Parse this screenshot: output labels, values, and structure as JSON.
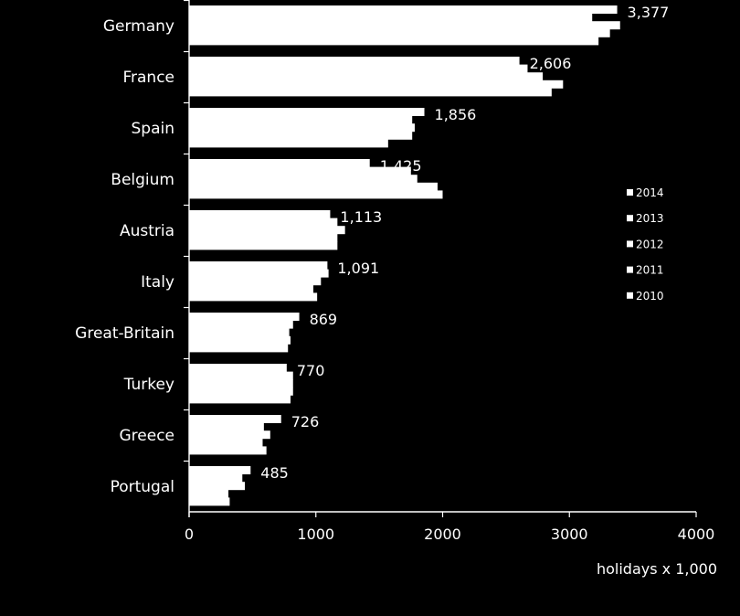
{
  "chart_data": {
    "type": "bar",
    "orientation": "horizontal",
    "xlabel": "holidays x 1,000",
    "xlim": [
      0,
      4000
    ],
    "xticks": [
      "0",
      "1000",
      "2000",
      "3000",
      "4000"
    ],
    "grid": false,
    "legend_position": "right",
    "bar_color": "#ffffff",
    "background": "#000000",
    "categories": [
      "Germany",
      "France",
      "Spain",
      "Belgium",
      "Austria",
      "Italy",
      "Great-Britain",
      "Turkey",
      "Greece",
      "Portugal"
    ],
    "value_labels": [
      "3,377",
      "2,606",
      "1,856",
      "1,425",
      "1,113",
      "1,091",
      "869",
      "770",
      "726",
      "485"
    ],
    "series": [
      {
        "name": "2014",
        "values": [
          3377,
          2606,
          1856,
          1425,
          1113,
          1091,
          869,
          770,
          726,
          485
        ]
      },
      {
        "name": "2013",
        "values": [
          3180,
          2670,
          1760,
          1750,
          1170,
          1100,
          820,
          820,
          590,
          420
        ]
      },
      {
        "name": "2012",
        "values": [
          3400,
          2790,
          1780,
          1800,
          1230,
          1040,
          790,
          820,
          640,
          440
        ]
      },
      {
        "name": "2011",
        "values": [
          3320,
          2950,
          1760,
          1960,
          1170,
          980,
          800,
          820,
          580,
          310
        ]
      },
      {
        "name": "2010",
        "values": [
          3230,
          2860,
          1570,
          2000,
          1170,
          1010,
          780,
          800,
          610,
          320
        ]
      }
    ]
  }
}
